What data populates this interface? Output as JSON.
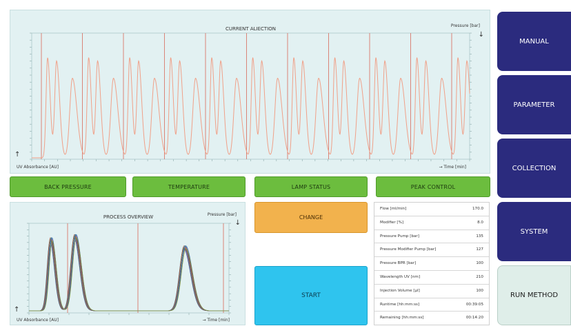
{
  "colors": {
    "panel_bg": "#e2f1f2",
    "trace": "#f0a088",
    "marker": "#d9786a",
    "green_button": "#6cbd3e",
    "nav_button": "#2b2b7e",
    "change_button": "#f2b24d",
    "start_button": "#2fc4ee"
  },
  "current_injection": {
    "title": "CURRENT ALIECTION",
    "right_axis_label": "Pressure [bar]",
    "y_axis_label": "UV Absorbance [AU]",
    "x_axis_label": "→ Time [min]",
    "arrow_down": "↓",
    "arrow_up": "↑"
  },
  "process_overview": {
    "title": "PROCESS OVERVIEW",
    "right_axis_label": "Pressure [bar]",
    "y_axis_label": "UV Absorbance [AU]",
    "x_axis_label": "→ Time [min]",
    "arrow_down": "↓",
    "arrow_up": "↑"
  },
  "status_buttons": {
    "back_pressure": "BACK PRESSURE",
    "temperature": "TEMPERATURE",
    "lamp_status": "LAMP STATUS",
    "peak_control": "PEAK CONTROL"
  },
  "actions": {
    "change": "CHANGE",
    "start": "START"
  },
  "nav": {
    "manual": "MANUAL",
    "parameter": "PARAMETER",
    "collection": "COLLECTION",
    "system": "SYSTEM",
    "run_method": "RUN METHOD"
  },
  "params": [
    {
      "label": "Flow [ml/min]",
      "value": "170.0"
    },
    {
      "label": "Modifier [%]",
      "value": "8.0"
    },
    {
      "label": "Pressure Pump [bar]",
      "value": "135"
    },
    {
      "label": "Pressure Modifier Pump [bar]",
      "value": "127"
    },
    {
      "label": "Pressure BPR [bar]",
      "value": "100"
    },
    {
      "label": "Wavelength UV [nm]",
      "value": "210"
    },
    {
      "label": "Injection Volume [µl]",
      "value": "100"
    },
    {
      "label": "Runtime [hh:mm:ss]",
      "value": "00:39:05"
    },
    {
      "label": "Remaining [hh:mm:ss]",
      "value": "00:14:20"
    }
  ]
}
